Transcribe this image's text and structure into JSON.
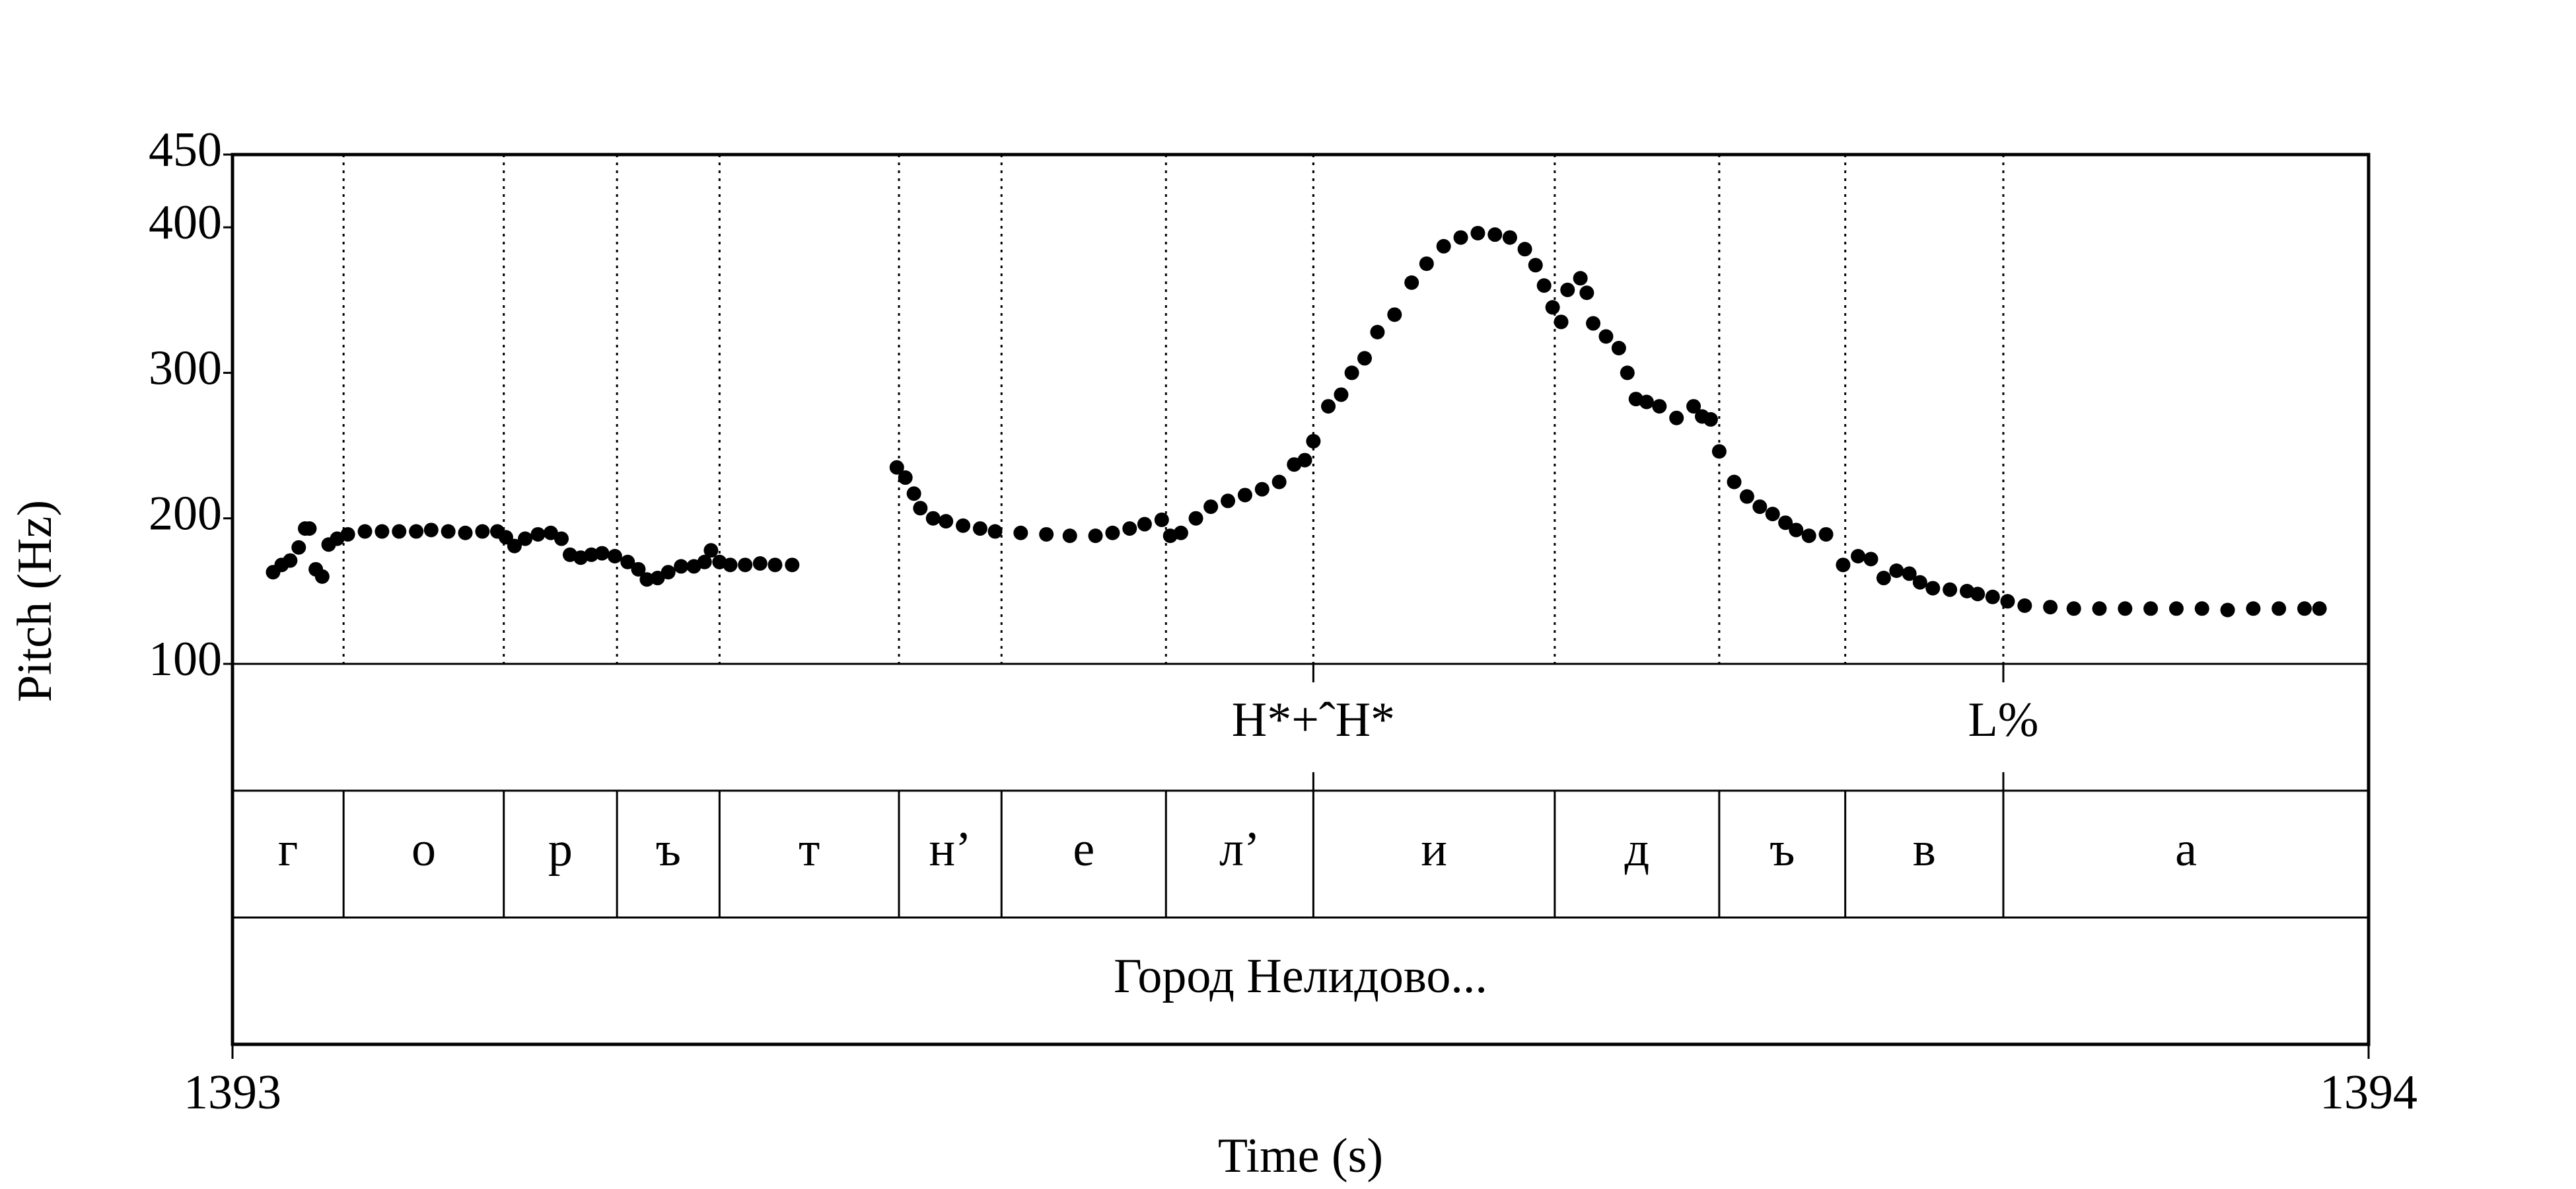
{
  "chart_data": {
    "type": "scatter",
    "xlabel": "Time (s)",
    "ylabel": "Pitch (Hz)",
    "xlim": [
      1393,
      1394
    ],
    "xticks": [
      1393,
      1394
    ],
    "ylim": [
      100,
      450
    ],
    "yticks": [
      100,
      200,
      300,
      400,
      450
    ],
    "color": "#000000",
    "x": [
      1393.019,
      1393.023,
      1393.027,
      1393.031,
      1393.034,
      1393.036,
      1393.039,
      1393.042,
      1393.045,
      1393.049,
      1393.054,
      1393.062,
      1393.07,
      1393.078,
      1393.086,
      1393.093,
      1393.101,
      1393.109,
      1393.117,
      1393.124,
      1393.128,
      1393.132,
      1393.137,
      1393.143,
      1393.149,
      1393.154,
      1393.158,
      1393.163,
      1393.168,
      1393.173,
      1393.179,
      1393.185,
      1393.19,
      1393.194,
      1393.199,
      1393.204,
      1393.21,
      1393.216,
      1393.221,
      1393.224,
      1393.228,
      1393.233,
      1393.24,
      1393.247,
      1393.254,
      1393.262,
      1393.311,
      1393.315,
      1393.319,
      1393.322,
      1393.328,
      1393.334,
      1393.342,
      1393.35,
      1393.357,
      1393.369,
      1393.381,
      1393.392,
      1393.404,
      1393.412,
      1393.42,
      1393.427,
      1393.435,
      1393.439,
      1393.444,
      1393.451,
      1393.458,
      1393.466,
      1393.474,
      1393.482,
      1393.49,
      1393.497,
      1393.502,
      1393.506,
      1393.513,
      1393.519,
      1393.524,
      1393.53,
      1393.536,
      1393.544,
      1393.552,
      1393.559,
      1393.567,
      1393.575,
      1393.583,
      1393.591,
      1393.598,
      1393.605,
      1393.61,
      1393.614,
      1393.618,
      1393.622,
      1393.625,
      1393.631,
      1393.634,
      1393.637,
      1393.643,
      1393.649,
      1393.653,
      1393.657,
      1393.662,
      1393.668,
      1393.676,
      1393.684,
      1393.688,
      1393.692,
      1393.696,
      1393.703,
      1393.709,
      1393.715,
      1393.721,
      1393.727,
      1393.732,
      1393.738,
      1393.746,
      1393.754,
      1393.761,
      1393.767,
      1393.773,
      1393.779,
      1393.785,
      1393.79,
      1393.796,
      1393.804,
      1393.812,
      1393.817,
      1393.824,
      1393.831,
      1393.839,
      1393.851,
      1393.862,
      1393.874,
      1393.886,
      1393.898,
      1393.91,
      1393.922,
      1393.934,
      1393.946,
      1393.958,
      1393.97,
      1393.977
    ],
    "values": [
      163,
      168,
      171,
      180,
      193,
      193,
      165,
      160,
      182,
      186,
      189,
      191,
      191,
      191,
      191,
      192,
      191,
      190,
      191,
      191,
      187,
      181,
      186,
      189,
      190,
      186,
      175,
      173,
      175,
      176,
      174,
      170,
      165,
      158,
      159,
      163,
      167,
      167,
      170,
      178,
      170,
      168,
      168,
      169,
      168,
      168,
      235,
      228,
      217,
      207,
      200,
      198,
      195,
      193,
      191,
      190,
      189,
      188,
      188,
      190,
      193,
      196,
      199,
      188,
      190,
      200,
      208,
      212,
      216,
      220,
      225,
      237,
      240,
      253,
      277,
      285,
      300,
      310,
      328,
      340,
      362,
      375,
      387,
      393,
      396,
      395,
      393,
      385,
      374,
      360,
      345,
      335,
      357,
      365,
      355,
      334,
      325,
      317,
      300,
      282,
      280,
      277,
      269,
      277,
      270,
      268,
      246,
      225,
      215,
      208,
      203,
      197,
      192,
      188,
      189,
      168,
      174,
      172,
      159,
      164,
      162,
      156,
      152,
      151,
      150,
      148,
      146,
      143,
      140,
      139,
      138,
      138,
      138,
      138,
      138,
      138,
      137,
      138,
      138,
      138,
      138
    ],
    "tiers": [
      {
        "type": "point",
        "points": [
          {
            "time": 1393.506,
            "label": "H*+ˆH*"
          },
          {
            "time": 1393.829,
            "label": "L%"
          }
        ]
      },
      {
        "type": "interval",
        "boundaries": [
          1393.052,
          1393.127,
          1393.18,
          1393.228,
          1393.312,
          1393.36,
          1393.437,
          1393.506,
          1393.619,
          1393.696,
          1393.755,
          1393.829
        ],
        "labels": [
          "г",
          "о",
          "р",
          "ъ",
          "т",
          "н’",
          "е",
          "л’",
          "и",
          "д",
          "ъ",
          "в",
          "а"
        ]
      },
      {
        "type": "interval",
        "boundaries": [],
        "labels": [
          "Город Нелидово..."
        ]
      }
    ]
  }
}
